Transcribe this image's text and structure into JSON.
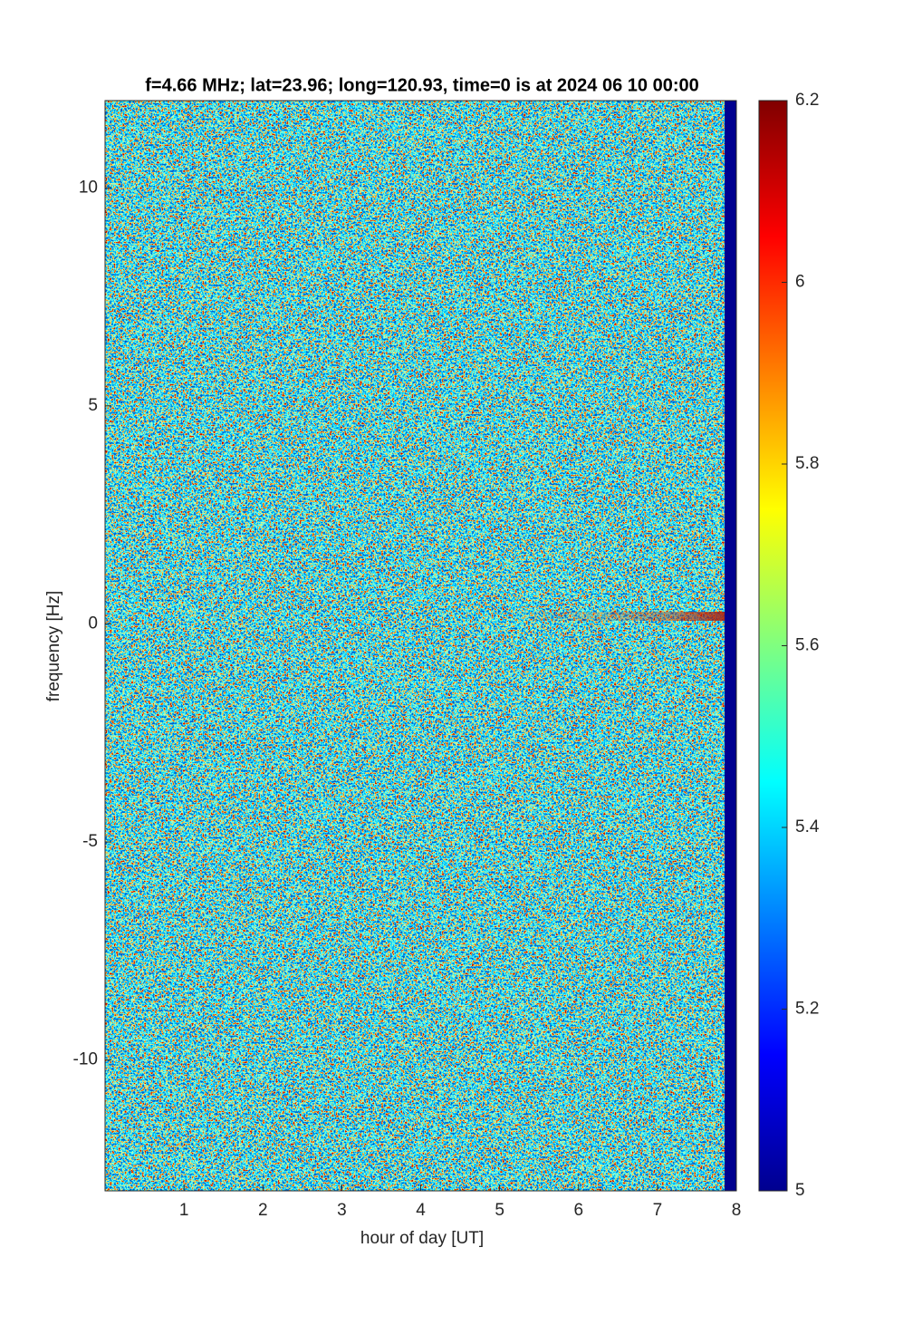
{
  "chart_data": {
    "type": "heatmap",
    "title": "f=4.66 MHz;  lat=23.96; long=120.93, time=0 is at 2024 06 10 00:00",
    "x_label": "hour of day [UT]",
    "y_label": "frequency [Hz]",
    "xlim": [
      0,
      8
    ],
    "xticks": [
      1,
      2,
      3,
      4,
      5,
      6,
      7,
      8
    ],
    "ylim": [
      -13,
      12
    ],
    "yticks": [
      -10,
      -5,
      0,
      5,
      10
    ],
    "colormap": "jet",
    "clim": [
      5,
      6.2
    ],
    "cticks": [
      5,
      5.2,
      5.4,
      5.6,
      5.8,
      6,
      6.2
    ]
  }
}
